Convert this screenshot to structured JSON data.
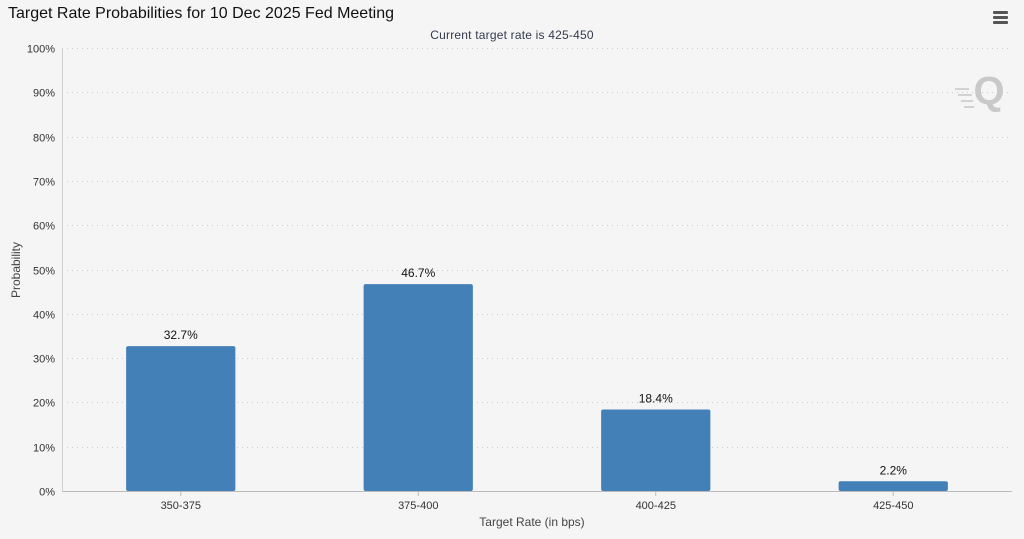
{
  "title": "Target Rate Probabilities for 10 Dec 2025 Fed Meeting",
  "subtitle": "Current target rate is 425-450",
  "watermark_icon": "q-logo-icon",
  "menu_icon": "hamburger-menu-icon",
  "colors": {
    "bar": "#4380b8",
    "background": "#f5f5f5",
    "grid": "#cccccc"
  },
  "chart_data": {
    "type": "bar",
    "categories": [
      "350-375",
      "375-400",
      "400-425",
      "425-450"
    ],
    "values": [
      32.7,
      46.7,
      18.4,
      2.2
    ],
    "data_labels": [
      "32.7%",
      "46.7%",
      "18.4%",
      "2.2%"
    ],
    "title": "Target Rate Probabilities for 10 Dec 2025 Fed Meeting",
    "subtitle": "Current target rate is 425-450",
    "xlabel": "Target Rate (in bps)",
    "ylabel": "Probability",
    "ylim": [
      0,
      100
    ],
    "yticks": [
      0,
      10,
      20,
      30,
      40,
      50,
      60,
      70,
      80,
      90,
      100
    ],
    "ytick_labels": [
      "0%",
      "10%",
      "20%",
      "30%",
      "40%",
      "50%",
      "60%",
      "70%",
      "80%",
      "90%",
      "100%"
    ],
    "grid": true,
    "legend": false
  }
}
